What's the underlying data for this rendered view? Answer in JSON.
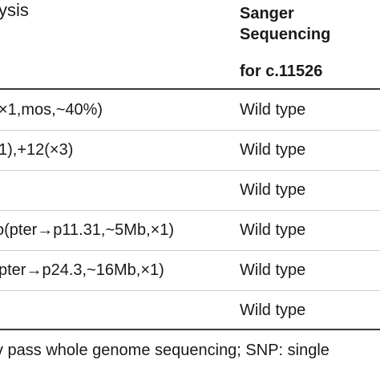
{
  "table": {
    "header": {
      "left": "ysis",
      "right_line1": "Sanger",
      "right_line2": "Sequencing",
      "right_line3": "for c.11526"
    },
    "rows": [
      {
        "left": "×1,mos,~40%)",
        "right": "Wild type"
      },
      {
        "left": "1),+12(×3)",
        "right": "Wild type"
      },
      {
        "left": "",
        "right": "Wild type"
      },
      {
        "left": "o(pter→p11.31,~5Mb,×1)",
        "right": "Wild type"
      },
      {
        "left": "pter→p24.3,~16Mb,×1)",
        "right": "Wild type"
      },
      {
        "left": "",
        "right": "Wild type"
      }
    ]
  },
  "footnote": "v pass whole genome sequencing; SNP: single"
}
